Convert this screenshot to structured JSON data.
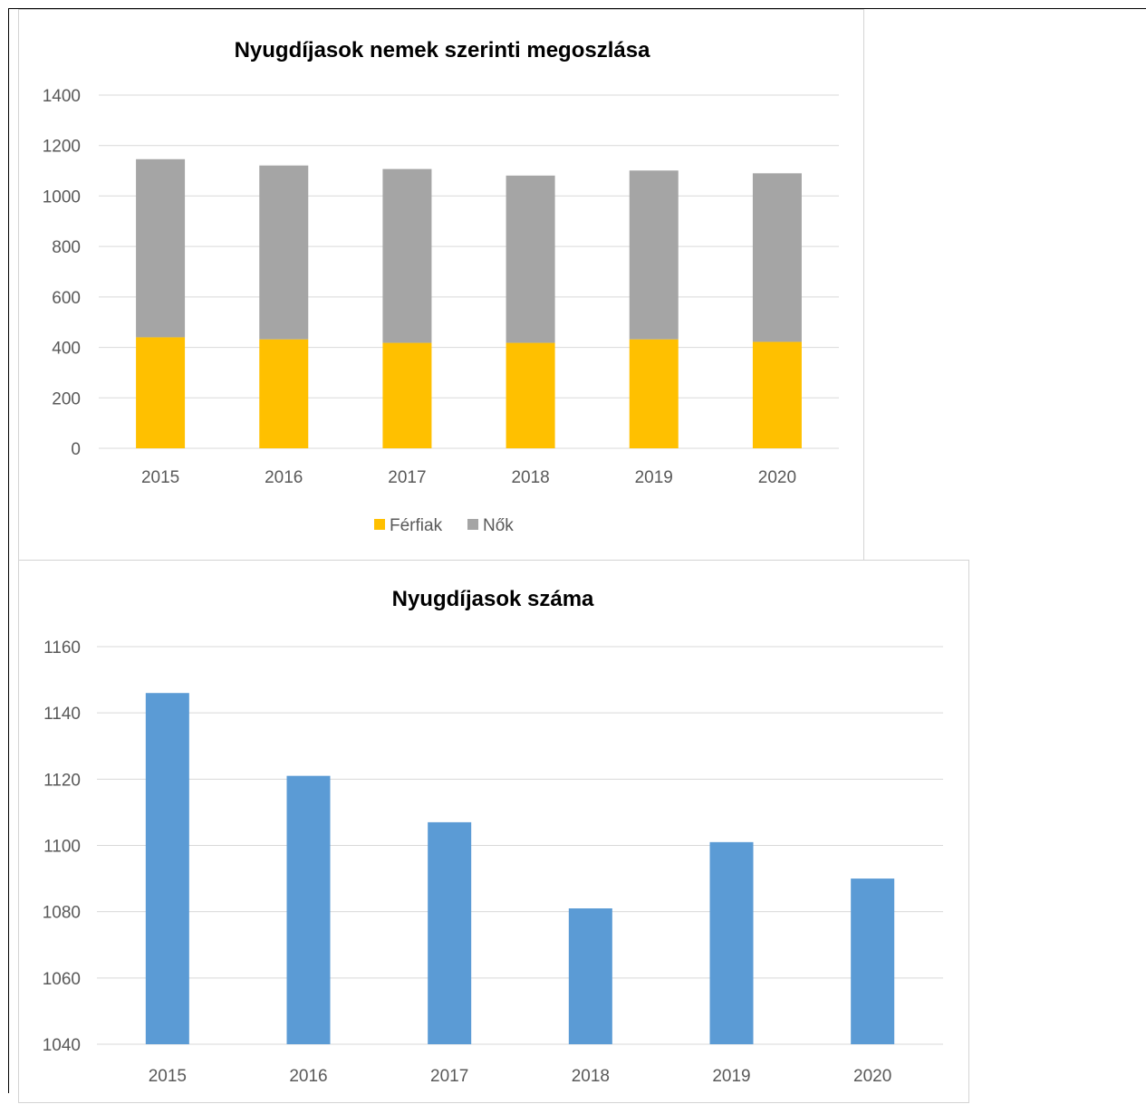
{
  "charts": {
    "stacked": {
      "title": "Nyugdíjasok nemek szerinti megoszlása",
      "chart_data": {
        "type": "bar",
        "stacked": true,
        "title": "Nyugdíjasok nemek szerinti megoszlása",
        "categories": [
          "2015",
          "2016",
          "2017",
          "2018",
          "2019",
          "2020"
        ],
        "series": [
          {
            "name": "Férfiak",
            "color": "#ffc000",
            "values": [
              440,
              432,
              418,
              418,
              432,
              422
            ]
          },
          {
            "name": "Nők",
            "color": "#a5a5a5",
            "values": [
              706,
              689,
              689,
              663,
              669,
              668
            ]
          }
        ],
        "ylim": [
          0,
          1400
        ],
        "yticks": [
          0,
          200,
          400,
          600,
          800,
          1000,
          1200,
          1400
        ],
        "grid": true,
        "legend": "bottom"
      }
    },
    "totals": {
      "title": "Nyugdíjasok száma",
      "chart_data": {
        "type": "bar",
        "title": "Nyugdíjasok száma",
        "categories": [
          "2015",
          "2016",
          "2017",
          "2018",
          "2019",
          "2020"
        ],
        "series": [
          {
            "color": "#5b9bd5",
            "values": [
              1146,
              1121,
              1107,
              1081,
              1101,
              1090
            ]
          }
        ],
        "ylim": [
          1040,
          1160
        ],
        "yticks": [
          1040,
          1060,
          1080,
          1100,
          1120,
          1140,
          1160
        ],
        "grid": true
      }
    }
  }
}
